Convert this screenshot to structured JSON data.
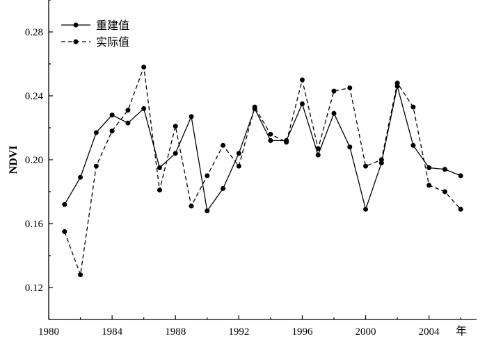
{
  "chart_data": {
    "type": "line",
    "title": "",
    "xlabel": "",
    "x_unit_label": "年",
    "ylabel": "NDVI",
    "xlim": [
      1980,
      2007
    ],
    "ylim": [
      0.1,
      0.3
    ],
    "x_ticks": [
      1980,
      1984,
      1988,
      1992,
      1996,
      2000,
      2004
    ],
    "y_ticks": [
      0.12,
      0.16,
      0.2,
      0.24,
      0.28
    ],
    "y_tick_labels": [
      "0.12",
      "0.16",
      "0.20",
      "0.24",
      "0.28"
    ],
    "grid": false,
    "legend_position": "top-left",
    "x": [
      1981,
      1982,
      1983,
      1984,
      1985,
      1986,
      1987,
      1988,
      1989,
      1990,
      1991,
      1992,
      1993,
      1994,
      1995,
      1996,
      1997,
      1998,
      1999,
      2000,
      2001,
      2002,
      2003,
      2004,
      2005,
      2006
    ],
    "series": [
      {
        "name": "重建值",
        "style": "solid",
        "color": "#000000",
        "values": [
          0.172,
          0.189,
          0.217,
          0.228,
          0.223,
          0.232,
          0.195,
          0.204,
          0.227,
          0.168,
          0.182,
          0.204,
          0.232,
          0.212,
          0.212,
          0.235,
          0.203,
          0.229,
          0.208,
          0.169,
          0.198,
          0.246,
          0.209,
          0.195,
          0.194,
          0.19
        ]
      },
      {
        "name": "实际值",
        "style": "dashed",
        "color": "#000000",
        "values": [
          0.155,
          0.128,
          0.196,
          0.218,
          0.231,
          0.258,
          0.181,
          0.221,
          0.171,
          0.19,
          0.209,
          0.196,
          0.233,
          0.216,
          0.211,
          0.25,
          0.207,
          0.243,
          0.245,
          0.196,
          0.2,
          0.248,
          0.233,
          0.184,
          0.18,
          0.169
        ]
      }
    ]
  }
}
